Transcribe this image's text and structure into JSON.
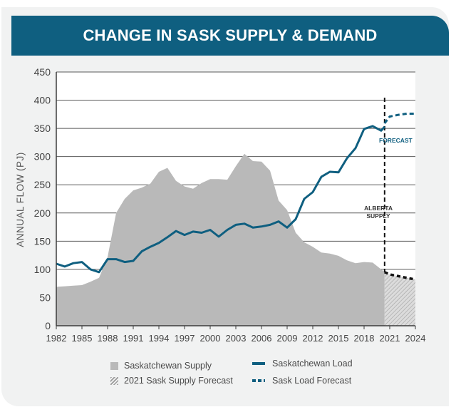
{
  "title": "CHANGE IN SASK SUPPLY & DEMAND",
  "colors": {
    "banner": "#0f5f80",
    "load": "#0f5f80",
    "supply": "#b9b9b9",
    "forecast_area": "#cfcfcf",
    "axis": "#3c3c3c",
    "alberta_line": "#111111",
    "supply_forecast_line": "#111111"
  },
  "annotations": {
    "forecast": "FORECAST",
    "alberta_line1": "ALBERTA",
    "alberta_line2": "SUPPLY"
  },
  "legend": {
    "supply": "Saskatchewan Supply",
    "supply_forecast": "2021 Sask Supply Forecast",
    "load": "Saskatchewan Load",
    "load_forecast": "Sask Load Forecast"
  },
  "chart_data": {
    "type": "area",
    "title": "CHANGE IN SASK SUPPLY & DEMAND",
    "xlabel": "",
    "ylabel": "ANNUAL FLOW (PJ)",
    "xlim": [
      1982,
      2024
    ],
    "ylim": [
      0,
      450
    ],
    "xticks": [
      "1982",
      "1985",
      "1988",
      "1991",
      "1994",
      "1997",
      "2000",
      "2003",
      "2006",
      "2009",
      "2012",
      "2015",
      "2018",
      "2021",
      "2024"
    ],
    "yticks": [
      "0",
      "50",
      "100",
      "150",
      "200",
      "250",
      "300",
      "350",
      "400",
      "450"
    ],
    "forecast_start": 2020.4,
    "series": [
      {
        "name": "Saskatchewan Supply",
        "type": "area",
        "x": [
          1982,
          1983,
          1984,
          1985,
          1986,
          1987,
          1988,
          1989,
          1990,
          1991,
          1992,
          1993,
          1994,
          1995,
          1996,
          1997,
          1998,
          1999,
          2000,
          2001,
          2002,
          2003,
          2004,
          2005,
          2006,
          2007,
          2008,
          2009,
          2010,
          2011,
          2012,
          2013,
          2014,
          2015,
          2016,
          2017,
          2018,
          2019,
          2020,
          2020.4
        ],
        "values": [
          69,
          70,
          71,
          72,
          78,
          85,
          122,
          200,
          225,
          240,
          245,
          252,
          273,
          280,
          257,
          247,
          243,
          253,
          260,
          260,
          259,
          283,
          305,
          292,
          291,
          275,
          222,
          205,
          165,
          148,
          140,
          130,
          128,
          124,
          116,
          111,
          113,
          112,
          100,
          95
        ]
      },
      {
        "name": "2021 Sask Supply Forecast",
        "type": "area-dashed",
        "x": [
          2020.4,
          2021,
          2022,
          2023,
          2024
        ],
        "values": [
          95,
          91,
          88,
          85,
          82
        ]
      },
      {
        "name": "Saskatchewan Load",
        "type": "line",
        "x": [
          1982,
          1983,
          1984,
          1985,
          1986,
          1987,
          1988,
          1989,
          1990,
          1991,
          1992,
          1993,
          1994,
          1995,
          1996,
          1997,
          1998,
          1999,
          2000,
          2001,
          2002,
          2003,
          2004,
          2005,
          2006,
          2007,
          2008,
          2009,
          2010,
          2011,
          2012,
          2013,
          2014,
          2015,
          2016,
          2017,
          2018,
          2019,
          2020,
          2020.4
        ],
        "values": [
          110,
          105,
          111,
          113,
          100,
          95,
          118,
          118,
          113,
          115,
          132,
          140,
          147,
          157,
          168,
          161,
          167,
          165,
          170,
          158,
          170,
          179,
          181,
          174,
          176,
          179,
          185,
          174,
          189,
          225,
          237,
          264,
          273,
          272,
          297,
          315,
          349,
          354,
          346,
          353
        ]
      },
      {
        "name": "Sask Load Forecast",
        "type": "line-dashed",
        "x": [
          2020.4,
          2021,
          2022,
          2023,
          2024
        ],
        "values": [
          359,
          371,
          374,
          376,
          376
        ]
      }
    ],
    "legend": [
      "Saskatchewan Supply",
      "2021 Sask Supply Forecast",
      "Saskatchewan Load",
      "Sask Load Forecast"
    ],
    "legend_position": "bottom"
  }
}
